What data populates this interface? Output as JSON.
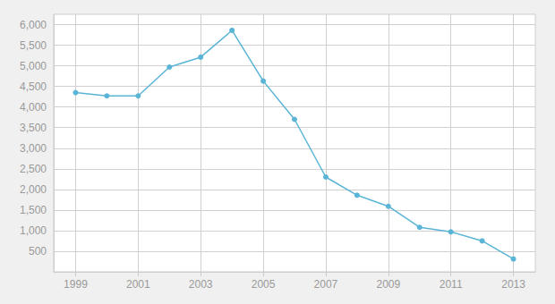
{
  "chart_data": {
    "type": "line",
    "x": [
      1999,
      2000,
      2001,
      2002,
      2003,
      2004,
      2005,
      2006,
      2007,
      2008,
      2009,
      2010,
      2011,
      2012,
      2013
    ],
    "values": [
      4350,
      4270,
      4270,
      4970,
      5210,
      5860,
      4630,
      3700,
      2300,
      1860,
      1590,
      1080,
      970,
      750,
      310
    ],
    "color": "#5ab4d6",
    "marker": "circle",
    "xlim": [
      1998.3,
      2013.7
    ],
    "xticks": [
      1999,
      2001,
      2003,
      2005,
      2007,
      2009,
      2011,
      2013
    ],
    "ylim": [
      0,
      6250
    ],
    "yticks": [
      500,
      {
        "value": 1000,
        "label": "1,000"
      },
      {
        "value": 1500,
        "label": "1,500"
      },
      {
        "value": 2000,
        "label": "2,000"
      },
      {
        "value": 2500,
        "label": "2,500"
      },
      {
        "value": 3000,
        "label": "3,000"
      },
      {
        "value": 3500,
        "label": "3,500"
      },
      {
        "value": 4000,
        "label": "4,000"
      },
      {
        "value": 4500,
        "label": "4,500"
      },
      {
        "value": 5000,
        "label": "5,000"
      },
      {
        "value": 5500,
        "label": "5,500"
      },
      {
        "value": 6000,
        "label": "6,000"
      }
    ],
    "grid": true
  }
}
